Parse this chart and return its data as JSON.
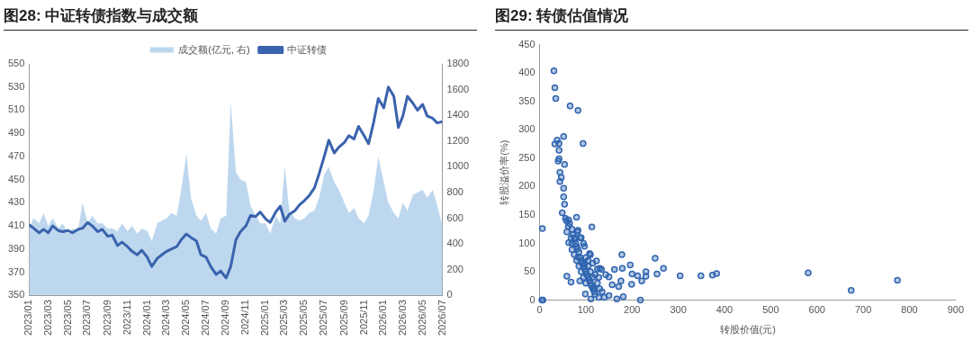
{
  "chart_data": [
    {
      "type": "line",
      "title": "图28: 中证转债指数与成交额",
      "legend": "top",
      "grid": false,
      "x": [
        "2023-01-01",
        "2023-01-15",
        "2023-02-01",
        "2023-02-15",
        "2023-03-01",
        "2023-03-15",
        "2023-04-01",
        "2023-04-15",
        "2023-05-01",
        "2023-05-15",
        "2023-06-01",
        "2023-06-15",
        "2023-07-01",
        "2023-07-15",
        "2023-08-01",
        "2023-08-15",
        "2023-09-01",
        "2023-09-15",
        "2023-10-01",
        "2023-10-15",
        "2023-11-01",
        "2023-11-15",
        "2023-12-01",
        "2023-12-15",
        "2024-01-01",
        "2024-01-15",
        "2024-02-01",
        "2024-02-15",
        "2024-03-01",
        "2024-03-15",
        "2024-04-01",
        "2024-04-15",
        "2024-05-01",
        "2024-05-15",
        "2024-06-01",
        "2024-06-15",
        "2024-07-01",
        "2024-07-15",
        "2024-08-01",
        "2024-08-15",
        "2024-09-01",
        "2024-09-15",
        "2024-10-01",
        "2024-10-15",
        "2024-11-01",
        "2024-11-15",
        "2024-12-01",
        "2024-12-15",
        "2025-01-01",
        "2025-01-15",
        "2025-02-01",
        "2025-02-15",
        "2025-03-01",
        "2025-03-15",
        "2025-04-01",
        "2025-04-15",
        "2025-05-01",
        "2025-05-15",
        "2025-06-01",
        "2025-06-15",
        "2025-07-01",
        "2025-07-15",
        "2025-08-01",
        "2025-08-15",
        "2025-09-01",
        "2025-09-15",
        "2025-10-01",
        "2025-10-15",
        "2025-11-01",
        "2025-11-15",
        "2025-12-01",
        "2025-12-15",
        "2026-01-01",
        "2026-01-15",
        "2026-02-01",
        "2026-02-15",
        "2026-03-01",
        "2026-03-15",
        "2026-04-01",
        "2026-04-15",
        "2026-05-01",
        "2026-05-15",
        "2026-06-01",
        "2026-06-15",
        "2026-07-01"
      ],
      "series": [
        {
          "name": "成交额(亿元, 右)",
          "type": "area",
          "axis": "y2",
          "color": "#bdd7ee",
          "values": [
            520,
            600,
            560,
            640,
            540,
            600,
            520,
            560,
            480,
            520,
            500,
            720,
            560,
            620,
            560,
            560,
            520,
            520,
            500,
            560,
            500,
            540,
            480,
            520,
            500,
            420,
            560,
            580,
            600,
            640,
            620,
            820,
            1100,
            760,
            620,
            580,
            640,
            520,
            480,
            600,
            620,
            1500,
            960,
            900,
            880,
            700,
            620,
            560,
            560,
            480,
            620,
            560,
            1000,
            660,
            600,
            580,
            600,
            640,
            660,
            760,
            940,
            1000,
            880,
            820,
            720,
            640,
            680,
            600,
            560,
            620,
            820,
            1080,
            880,
            720,
            640,
            600,
            720,
            660,
            780,
            800,
            820,
            760,
            820,
            700,
            540
          ]
        },
        {
          "name": "中证转债",
          "type": "line",
          "color": "#3a62ad",
          "values": [
            411,
            408,
            404,
            407,
            404,
            410,
            406,
            405,
            406,
            404,
            407,
            408,
            413,
            410,
            405,
            407,
            401,
            402,
            393,
            396,
            392,
            388,
            385,
            389,
            383,
            375,
            382,
            385,
            388,
            390,
            392,
            398,
            403,
            400,
            397,
            385,
            383,
            375,
            368,
            371,
            365,
            375,
            398,
            405,
            410,
            419,
            418,
            422,
            416,
            413,
            422,
            427,
            414,
            420,
            423,
            428,
            432,
            436,
            443,
            455,
            470,
            484,
            473,
            478,
            482,
            488,
            485,
            496,
            488,
            481,
            500,
            520,
            512,
            530,
            522,
            495,
            505,
            522,
            516,
            510,
            515,
            505,
            503,
            499,
            500
          ]
        }
      ],
      "xlim": [
        "2023-01",
        "2026-07"
      ],
      "xticks": [
        {
          "value": "2023-01",
          "label": "2023/01"
        },
        {
          "value": "2023-03",
          "label": "2023/03"
        },
        {
          "value": "2023-05",
          "label": "2023/05"
        },
        {
          "value": "2023-07",
          "label": "2023/07"
        },
        {
          "value": "2023-09",
          "label": "2023/09"
        },
        {
          "value": "2023-11",
          "label": "2023/11"
        },
        {
          "value": "2024-01",
          "label": "2024/01"
        },
        {
          "value": "2024-03",
          "label": "2024/03"
        },
        {
          "value": "2024-05",
          "label": "2024/05"
        },
        {
          "value": "2024-07",
          "label": "2024/07"
        },
        {
          "value": "2024-09",
          "label": "2024/09"
        },
        {
          "value": "2024-11",
          "label": "2024/11"
        },
        {
          "value": "2025-01",
          "label": "2025/01"
        },
        {
          "value": "2025-03",
          "label": "2025/03"
        },
        {
          "value": "2025-05",
          "label": "2025/05"
        },
        {
          "value": "2025-07",
          "label": "2025/07"
        },
        {
          "value": "2025-09",
          "label": "2025/09"
        },
        {
          "value": "2025-11",
          "label": "2025/11"
        },
        {
          "value": "2026-01",
          "label": "2026/01"
        },
        {
          "value": "2026-03",
          "label": "2026/03"
        },
        {
          "value": "2026-05",
          "label": "2026/05"
        },
        {
          "value": "2026-07",
          "label": "2026/07"
        }
      ],
      "ylim": [
        350,
        550
      ],
      "yticks": [
        350,
        370,
        390,
        410,
        430,
        450,
        470,
        490,
        510,
        530,
        550
      ],
      "y2lim": [
        0,
        1800
      ],
      "y2ticks": [
        0,
        200,
        400,
        600,
        800,
        1000,
        1200,
        1400,
        1600,
        1800
      ]
    },
    {
      "type": "scatter",
      "title": "图29: 转债估值情况",
      "xlabel": "转股价值(元)",
      "ylabel": "转股溢价率(%)",
      "legend": false,
      "grid": false,
      "marker": "circle",
      "series": [
        {
          "color": "#2e64b0",
          "x": [
            31,
            33,
            35,
            66,
            83,
            52,
            94,
            33,
            38,
            42,
            42,
            42,
            40,
            54,
            44,
            47,
            44,
            52,
            52,
            54,
            49,
            56,
            63,
            80,
            6,
            113,
            59,
            83,
            76,
            90,
            97,
            63,
            70,
            83,
            97,
            108,
            123,
            130,
            134,
            59,
            68,
            87,
            99,
            111,
            118,
            143,
            150,
            157,
            150,
            162,
            167,
            171,
            176,
            178,
            179,
            181,
            196,
            200,
            199,
            212,
            218,
            221,
            230,
            230,
            250,
            254,
            268,
            304,
            349,
            374,
            383,
            581,
            674,
            774,
            5,
            7,
            65,
            70,
            72,
            75,
            78,
            80,
            82,
            85,
            88,
            90,
            92,
            95,
            98,
            100,
            102,
            105,
            108,
            110,
            112,
            115,
            118,
            120,
            125,
            128,
            130,
            85,
            90,
            95,
            100,
            105,
            110,
            115,
            75,
            80,
            70,
            68,
            62,
            58,
            100,
            105,
            120,
            125,
            135,
            140,
            128,
            95,
            88,
            82,
            110,
            115
          ],
          "values": [
            404,
            374,
            355,
            342,
            334,
            288,
            276,
            275,
            282,
            276,
            264,
            249,
            245,
            239,
            225,
            216,
            209,
            197,
            182,
            169,
            154,
            144,
            141,
            146,
            126,
            129,
            120,
            123,
            107,
            110,
            95,
            101,
            89,
            76,
            64,
            82,
            69,
            56,
            54,
            42,
            32,
            34,
            11,
            2,
            20,
            45,
            41,
            27,
            8,
            54,
            2,
            24,
            34,
            80,
            56,
            6,
            62,
            46,
            28,
            43,
            0,
            34,
            50,
            42,
            74,
            46,
            56,
            43,
            43,
            44,
            47,
            48,
            17,
            35,
            0,
            0,
            135,
            125,
            115,
            110,
            100,
            95,
            90,
            85,
            75,
            70,
            65,
            60,
            55,
            50,
            45,
            40,
            35,
            30,
            25,
            20,
            15,
            10,
            30,
            40,
            20,
            60,
            50,
            40,
            30,
            60,
            50,
            40,
            80,
            70,
            100,
            110,
            130,
            140,
            75,
            70,
            45,
            55,
            15,
            5,
            5,
            100,
            110,
            120,
            80,
            65
          ]
        }
      ],
      "xlim": [
        0,
        900
      ],
      "xticks": [
        0,
        100,
        200,
        300,
        400,
        500,
        600,
        700,
        800,
        900
      ],
      "ylim": [
        0,
        450
      ],
      "yticks": [
        0,
        50,
        100,
        150,
        200,
        250,
        300,
        350,
        400,
        450
      ]
    }
  ]
}
